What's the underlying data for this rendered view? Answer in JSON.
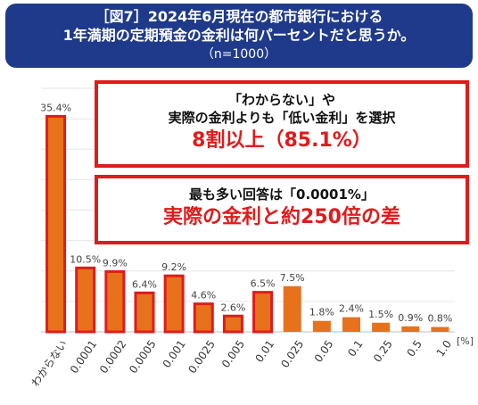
{
  "header": {
    "line1": "［図7］2024年6月現在の都市銀行における",
    "line2": "1年満期の定期預金の金利は何パーセントだと思うか。",
    "line3": "（n=1000）"
  },
  "callout1": {
    "line1": "「わからない」や",
    "line2": "実際の金利よりも「低い金利」を選択",
    "highlight": "8割以上（85.1%）"
  },
  "callout2": {
    "line1": "最も多い回答は「0.0001%」",
    "highlight": "実際の金利と約250倍の差"
  },
  "colors": {
    "header_bg": "#1f3a8a",
    "bar_fill": "#e8711c",
    "highlight_outline": "#e01b1b"
  },
  "chart_data": {
    "type": "bar",
    "categories": [
      "わからない",
      "0.0001",
      "0.0002",
      "0.0005",
      "0.001",
      "0.0025",
      "0.005",
      "0.01",
      "0.025",
      "0.05",
      "0.1",
      "0.25",
      "0.5",
      "1.0"
    ],
    "values": [
      35.4,
      10.5,
      9.9,
      6.4,
      9.2,
      4.6,
      2.6,
      6.5,
      7.5,
      1.8,
      2.4,
      1.5,
      0.9,
      0.8
    ],
    "labels": [
      "35.4%",
      "10.5%",
      "9.9%",
      "6.4%",
      "9.2%",
      "4.6%",
      "2.6%",
      "6.5%",
      "7.5%",
      "1.8%",
      "2.4%",
      "1.5%",
      "0.9%",
      "0.8%"
    ],
    "highlighted": [
      true,
      true,
      true,
      true,
      true,
      true,
      true,
      true,
      false,
      false,
      false,
      false,
      false,
      false
    ],
    "unit": "[%]",
    "ylim": [
      0,
      40
    ],
    "grid": true
  }
}
